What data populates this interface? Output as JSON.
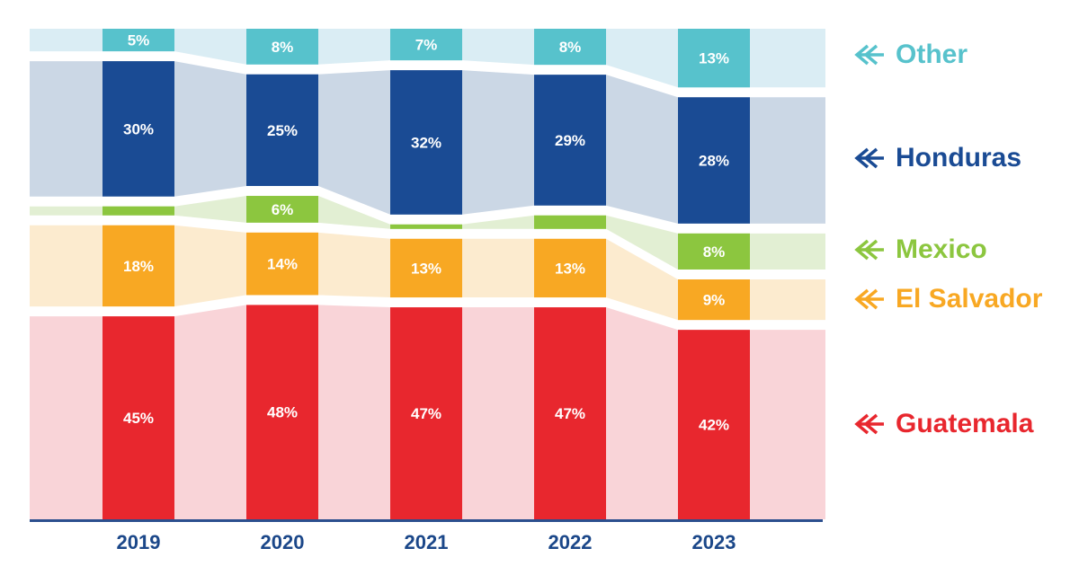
{
  "chart_data": {
    "type": "bar",
    "variant": "stacked-percentage-columns-with-flow-bands",
    "categories": [
      "2019",
      "2020",
      "2021",
      "2022",
      "2023"
    ],
    "series": [
      {
        "name": "Other",
        "color": "#57C2CC",
        "light_color": "#DAEDF4",
        "values": [
          5,
          8,
          7,
          8,
          13
        ],
        "labels": [
          "5%",
          "8%",
          "7%",
          "8%",
          "13%"
        ]
      },
      {
        "name": "Honduras",
        "color": "#1A4B94",
        "light_color": "#CBD7E5",
        "values": [
          30,
          25,
          32,
          29,
          28
        ],
        "labels": [
          "30%",
          "25%",
          "32%",
          "29%",
          "28%"
        ]
      },
      {
        "name": "Mexico",
        "color": "#8CC63F",
        "light_color": "#E2EFD3",
        "values": [
          2,
          6,
          1,
          3,
          8
        ],
        "labels": [
          "",
          "6%",
          "",
          "",
          "8%"
        ]
      },
      {
        "name": "El Salvador",
        "color": "#F8A823",
        "light_color": "#FCEBCF",
        "values": [
          18,
          14,
          13,
          13,
          9
        ],
        "labels": [
          "18%",
          "14%",
          "13%",
          "13%",
          "9%"
        ]
      },
      {
        "name": "Guatemala",
        "color": "#E8272E",
        "light_color": "#F9D4D8",
        "values": [
          45,
          48,
          47,
          47,
          42
        ],
        "labels": [
          "45%",
          "48%",
          "47%",
          "47%",
          "42%"
        ]
      }
    ],
    "bar_label_color": "#FFFFFF",
    "baseline_color": "#2B4F8E",
    "tick_label_color": "#1B4789",
    "legend_position": "right",
    "grid": false,
    "ylim": [
      0,
      100
    ]
  }
}
